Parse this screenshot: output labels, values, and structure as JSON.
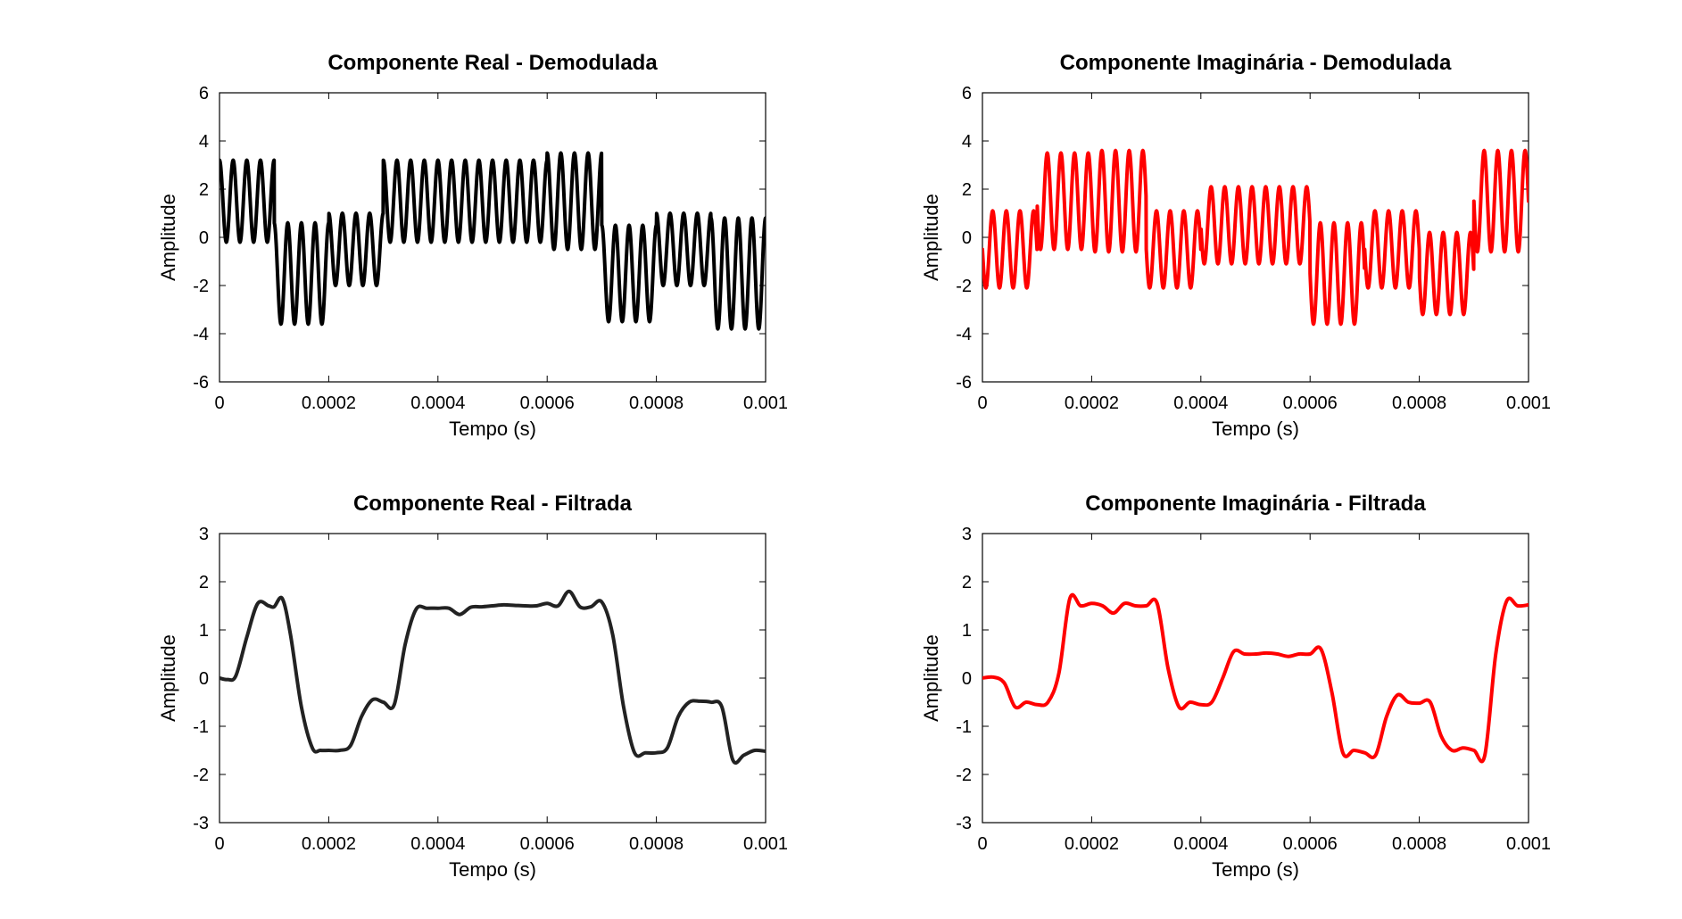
{
  "chart_data": [
    {
      "type": "line",
      "title": "Componente Real - Demodulada",
      "xlabel": "Tempo (s)",
      "ylabel": "Amplitude",
      "xlim": [
        0,
        0.001
      ],
      "ylim": [
        -6,
        6
      ],
      "xticks": [
        0,
        0.0002,
        0.0004,
        0.0006,
        0.0008,
        0.001
      ],
      "xtick_labels": [
        "0",
        "0.0002",
        "0.0004",
        "0.0006",
        "0.0008",
        "0.001"
      ],
      "yticks": [
        -6,
        -4,
        -2,
        0,
        2,
        4,
        6
      ],
      "ytick_labels": [
        "-6",
        "-4",
        "-2",
        "0",
        "2",
        "4",
        "6"
      ],
      "grid": false,
      "color": "#000000",
      "carrier_frequency_hz": 40000,
      "series": [
        {
          "x": [
            0,
            0.0001,
            0.0001,
            0.0002,
            0.0002,
            0.0003,
            0.0003,
            0.0004,
            0.0004,
            0.0005,
            0.0005,
            0.0006,
            0.0006,
            0.0007,
            0.0007,
            0.0008,
            0.0008,
            0.0009,
            0.0009,
            0.001
          ],
          "values": [
            1.5,
            1.5,
            -1.5,
            -1.5,
            -0.5,
            -0.5,
            1.5,
            1.5,
            1.5,
            1.5,
            1.5,
            1.5,
            1.5,
            1.5,
            -1.5,
            -1.5,
            -0.5,
            -0.5,
            -1.5,
            -1.5
          ],
          "oscillation_amplitude": [
            1.7,
            1.7,
            2.1,
            2.1,
            1.5,
            1.5,
            1.7,
            1.7,
            1.7,
            1.7,
            1.7,
            1.7,
            2.0,
            2.0,
            2.0,
            2.0,
            1.5,
            1.5,
            2.3,
            2.3
          ]
        }
      ]
    },
    {
      "type": "line",
      "title": "Componente Imaginária - Demodulada",
      "xlabel": "Tempo (s)",
      "ylabel": "Amplitude",
      "xlim": [
        0,
        0.001
      ],
      "ylim": [
        -6,
        6
      ],
      "xticks": [
        0,
        0.0002,
        0.0004,
        0.0006,
        0.0008,
        0.001
      ],
      "xtick_labels": [
        "0",
        "0.0002",
        "0.0004",
        "0.0006",
        "0.0008",
        "0.001"
      ],
      "yticks": [
        -6,
        -4,
        -2,
        0,
        2,
        4,
        6
      ],
      "ytick_labels": [
        "-6",
        "-4",
        "-2",
        "0",
        "2",
        "4",
        "6"
      ],
      "grid": false,
      "color": "#ff0000",
      "carrier_frequency_hz": 40000,
      "series": [
        {
          "x": [
            0,
            0.0001,
            0.0001,
            0.0002,
            0.0002,
            0.0003,
            0.0003,
            0.0004,
            0.0004,
            0.0005,
            0.0005,
            0.0006,
            0.0006,
            0.0007,
            0.0007,
            0.0008,
            0.0008,
            0.0009,
            0.0009,
            0.001
          ],
          "values": [
            -0.5,
            -0.5,
            1.5,
            1.5,
            1.5,
            1.5,
            -0.5,
            -0.5,
            0.5,
            0.5,
            0.5,
            0.5,
            -1.5,
            -1.5,
            -0.5,
            -0.5,
            -1.5,
            -1.5,
            1.5,
            1.5
          ],
          "oscillation_amplitude": [
            1.6,
            1.6,
            2.0,
            2.0,
            2.1,
            2.1,
            1.6,
            1.6,
            1.6,
            1.6,
            1.6,
            1.6,
            2.1,
            2.1,
            1.6,
            1.6,
            1.7,
            1.7,
            2.1,
            2.1
          ]
        }
      ]
    },
    {
      "type": "line",
      "title": "Componente Real - Filtrada",
      "xlabel": "Tempo (s)",
      "ylabel": "Amplitude",
      "xlim": [
        0,
        0.001
      ],
      "ylim": [
        -3,
        3
      ],
      "xticks": [
        0,
        0.0002,
        0.0004,
        0.0006,
        0.0008,
        0.001
      ],
      "xtick_labels": [
        "0",
        "0.0002",
        "0.0004",
        "0.0006",
        "0.0008",
        "0.001"
      ],
      "yticks": [
        -3,
        -2,
        -1,
        0,
        1,
        2,
        3
      ],
      "ytick_labels": [
        "-3",
        "-2",
        "-1",
        "0",
        "1",
        "2",
        "3"
      ],
      "grid": false,
      "color": "#222222",
      "series": [
        {
          "x": [
            0,
            1.5e-05,
            3e-05,
            5e-05,
            7e-05,
            9e-05,
            0.0001,
            0.000115,
            0.00013,
            0.00015,
            0.00017,
            0.000185,
            0.0002,
            0.00022,
            0.00024,
            0.00026,
            0.00028,
            0.0003,
            0.00032,
            0.00034,
            0.00036,
            0.00038,
            0.0004,
            0.00042,
            0.00044,
            0.00046,
            0.00048,
            0.0005,
            0.00052,
            0.00054,
            0.00056,
            0.00058,
            0.0006,
            0.00062,
            0.00064,
            0.00066,
            0.00068,
            0.0007,
            0.00072,
            0.00074,
            0.00076,
            0.00078,
            0.0008,
            0.00082,
            0.00084,
            0.00086,
            0.00088,
            0.0009,
            0.00092,
            0.00094,
            0.00096,
            0.00098,
            0.001
          ],
          "values": [
            0,
            -0.03,
            0.05,
            0.85,
            1.55,
            1.5,
            1.48,
            1.65,
            0.9,
            -0.6,
            -1.45,
            -1.5,
            -1.5,
            -1.5,
            -1.4,
            -0.8,
            -0.45,
            -0.5,
            -0.55,
            0.7,
            1.43,
            1.45,
            1.45,
            1.45,
            1.32,
            1.47,
            1.48,
            1.5,
            1.52,
            1.51,
            1.5,
            1.5,
            1.55,
            1.5,
            1.8,
            1.48,
            1.48,
            1.58,
            0.9,
            -0.6,
            -1.55,
            -1.55,
            -1.55,
            -1.45,
            -0.8,
            -0.5,
            -0.48,
            -0.5,
            -0.6,
            -1.7,
            -1.6,
            -1.5,
            -1.52
          ]
        }
      ]
    },
    {
      "type": "line",
      "title": "Componente Imaginária - Filtrada",
      "xlabel": "Tempo (s)",
      "ylabel": "Amplitude",
      "xlim": [
        0,
        0.001
      ],
      "ylim": [
        -3,
        3
      ],
      "xticks": [
        0,
        0.0002,
        0.0004,
        0.0006,
        0.0008,
        0.001
      ],
      "xtick_labels": [
        "0",
        "0.0002",
        "0.0004",
        "0.0006",
        "0.0008",
        "0.001"
      ],
      "yticks": [
        -3,
        -2,
        -1,
        0,
        1,
        2,
        3
      ],
      "ytick_labels": [
        "-3",
        "-2",
        "-1",
        "0",
        "1",
        "2",
        "3"
      ],
      "grid": false,
      "color": "#ff0000",
      "series": [
        {
          "x": [
            0,
            2e-05,
            4e-05,
            6e-05,
            8e-05,
            0.0001,
            0.00012,
            0.00014,
            0.00016,
            0.00018,
            0.0002,
            0.00022,
            0.00024,
            0.00026,
            0.00028,
            0.0003,
            0.00032,
            0.00034,
            0.00036,
            0.00038,
            0.0004,
            0.00042,
            0.00044,
            0.00046,
            0.00048,
            0.0005,
            0.00052,
            0.00054,
            0.00056,
            0.00058,
            0.0006,
            0.00062,
            0.00064,
            0.00066,
            0.00068,
            0.0007,
            0.00072,
            0.00074,
            0.00076,
            0.00078,
            0.0008,
            0.00082,
            0.00084,
            0.00086,
            0.00088,
            0.0009,
            0.00092,
            0.00094,
            0.00096,
            0.00098,
            0.001
          ],
          "values": [
            0,
            0.02,
            -0.1,
            -0.6,
            -0.5,
            -0.55,
            -0.5,
            0.1,
            1.65,
            1.5,
            1.55,
            1.5,
            1.35,
            1.55,
            1.5,
            1.5,
            1.55,
            0.2,
            -0.6,
            -0.5,
            -0.55,
            -0.5,
            0.0,
            0.55,
            0.5,
            0.5,
            0.52,
            0.5,
            0.45,
            0.5,
            0.5,
            0.6,
            -0.3,
            -1.55,
            -1.5,
            -1.55,
            -1.6,
            -0.8,
            -0.35,
            -0.5,
            -0.52,
            -0.5,
            -1.2,
            -1.5,
            -1.45,
            -1.5,
            -1.6,
            0.5,
            1.6,
            1.5,
            1.52
          ]
        }
      ]
    }
  ]
}
